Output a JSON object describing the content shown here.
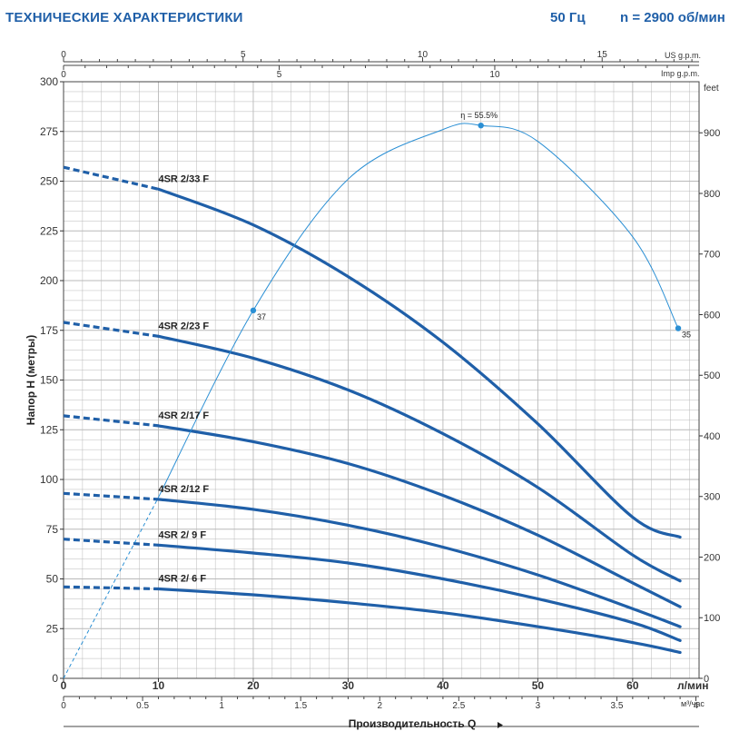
{
  "header": {
    "title": "ТЕХНИЧЕСКИЕ ХАРАКТЕРИСТИКИ",
    "frequency": "50 Гц",
    "speed": "n = 2900 об/мин"
  },
  "colors": {
    "curve": "#1f5fa8",
    "efficiency": "#2a8fd4",
    "grid": "#b9b9b9",
    "title": "#1f5fa8"
  },
  "chart_data": {
    "type": "line",
    "title": "",
    "xlabel": "Производительность Q",
    "ylabel": "Напор H (метры)",
    "x_unit": "л/мин",
    "xlim": [
      0,
      67
    ],
    "ylim": [
      0,
      300
    ],
    "x_ticks": [
      0,
      10,
      20,
      30,
      40,
      50,
      60
    ],
    "y_ticks": [
      0,
      25,
      50,
      75,
      100,
      125,
      150,
      175,
      200,
      225,
      250,
      275,
      300
    ],
    "grid": true,
    "secondary_axes": {
      "us_gpm": {
        "label": "US g.p.m.",
        "ticks": [
          0,
          5,
          10,
          15
        ]
      },
      "imp_gpm": {
        "label": "Imp g.p.m.",
        "ticks": [
          0,
          5,
          10
        ]
      },
      "feet": {
        "label": "feet",
        "ticks": [
          0,
          100,
          200,
          300,
          400,
          500,
          600,
          700,
          800,
          900
        ]
      },
      "m3h": {
        "label": "м³/час",
        "ticks": [
          0,
          0.5,
          1,
          1.5,
          2,
          2.5,
          3,
          3.5,
          4
        ]
      }
    },
    "series": [
      {
        "name": "4SR 2/33 F",
        "dashed_until": 10,
        "x": [
          0,
          10,
          20,
          30,
          40,
          50,
          60,
          65
        ],
        "y": [
          257,
          246,
          228,
          202,
          169,
          128,
          81,
          71
        ]
      },
      {
        "name": "4SR 2/23 F",
        "dashed_until": 10,
        "x": [
          0,
          10,
          20,
          30,
          40,
          50,
          60,
          65
        ],
        "y": [
          179,
          172,
          161,
          145,
          123,
          96,
          62,
          49
        ]
      },
      {
        "name": "4SR 2/17 F",
        "dashed_until": 10,
        "x": [
          0,
          10,
          20,
          30,
          40,
          50,
          60,
          65
        ],
        "y": [
          132,
          127,
          119,
          108,
          92,
          72,
          48,
          36
        ]
      },
      {
        "name": "4SR 2/12 F",
        "dashed_until": 10,
        "x": [
          0,
          10,
          20,
          30,
          40,
          50,
          60,
          65
        ],
        "y": [
          93,
          90,
          85,
          77,
          66,
          52,
          35,
          26
        ]
      },
      {
        "name": "4SR 2/ 9 F",
        "dashed_until": 10,
        "x": [
          0,
          10,
          20,
          30,
          40,
          50,
          60,
          65
        ],
        "y": [
          70,
          67,
          63,
          58,
          50,
          40,
          28,
          19
        ]
      },
      {
        "name": "4SR 2/ 6 F",
        "dashed_until": 10,
        "x": [
          0,
          10,
          20,
          30,
          40,
          50,
          60,
          65
        ],
        "y": [
          46,
          45,
          42,
          38,
          33,
          26,
          18,
          13
        ]
      }
    ],
    "efficiency_curve": {
      "x": [
        0,
        10,
        20,
        30,
        40,
        44,
        50,
        60,
        64.8
      ],
      "y": [
        0,
        91,
        185,
        251,
        276,
        278,
        270,
        222,
        176
      ],
      "dashed_until": 10,
      "points": [
        {
          "x": 20,
          "y": 185,
          "label": "37"
        },
        {
          "x": 44,
          "y": 278,
          "label": "η = 55.5%"
        },
        {
          "x": 64.8,
          "y": 176,
          "label": "35"
        }
      ]
    }
  }
}
